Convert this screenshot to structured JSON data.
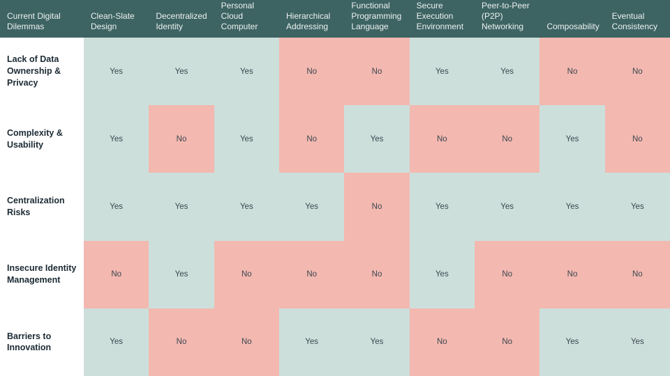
{
  "colors": {
    "header_bg": "#3d6363",
    "header_text": "#eef2f1",
    "label_text": "#1b2a33",
    "cell_text": "#3b4750",
    "yes_bg": "#cddfdb",
    "no_bg": "#f3b8b0",
    "label_col_bg": "#ffffff"
  },
  "chart_data": {
    "type": "table",
    "title": "",
    "corner_header": "Current Digital Dilemmas",
    "columns": [
      "Clean-Slate Design",
      "Decentralized Identity",
      "Personal Cloud Computer",
      "Hierarchical Addressing",
      "Functional Programming Language",
      "Secure Execution Environment",
      "Peer-to-Peer (P2P) Networking",
      "Composability",
      "Eventual Consistency"
    ],
    "rows": [
      {
        "label": "Lack of Data Ownership & Privacy",
        "values": [
          "Yes",
          "Yes",
          "Yes",
          "No",
          "No",
          "Yes",
          "Yes",
          "No",
          "No"
        ]
      },
      {
        "label": "Complexity & Usability",
        "values": [
          "Yes",
          "No",
          "Yes",
          "No",
          "Yes",
          "No",
          "No",
          "Yes",
          "No"
        ]
      },
      {
        "label": "Centralization Risks",
        "values": [
          "Yes",
          "Yes",
          "Yes",
          "Yes",
          "No",
          "Yes",
          "Yes",
          "Yes",
          "Yes"
        ]
      },
      {
        "label": "Insecure Identity Management",
        "values": [
          "No",
          "Yes",
          "No",
          "No",
          "No",
          "Yes",
          "No",
          "No",
          "No"
        ]
      },
      {
        "label": "Barriers to Innovation",
        "values": [
          "Yes",
          "No",
          "No",
          "Yes",
          "Yes",
          "No",
          "No",
          "Yes",
          "Yes"
        ]
      }
    ],
    "cell_color_legend": {
      "Yes": "#cddfdb",
      "No": "#f3b8b0"
    }
  }
}
